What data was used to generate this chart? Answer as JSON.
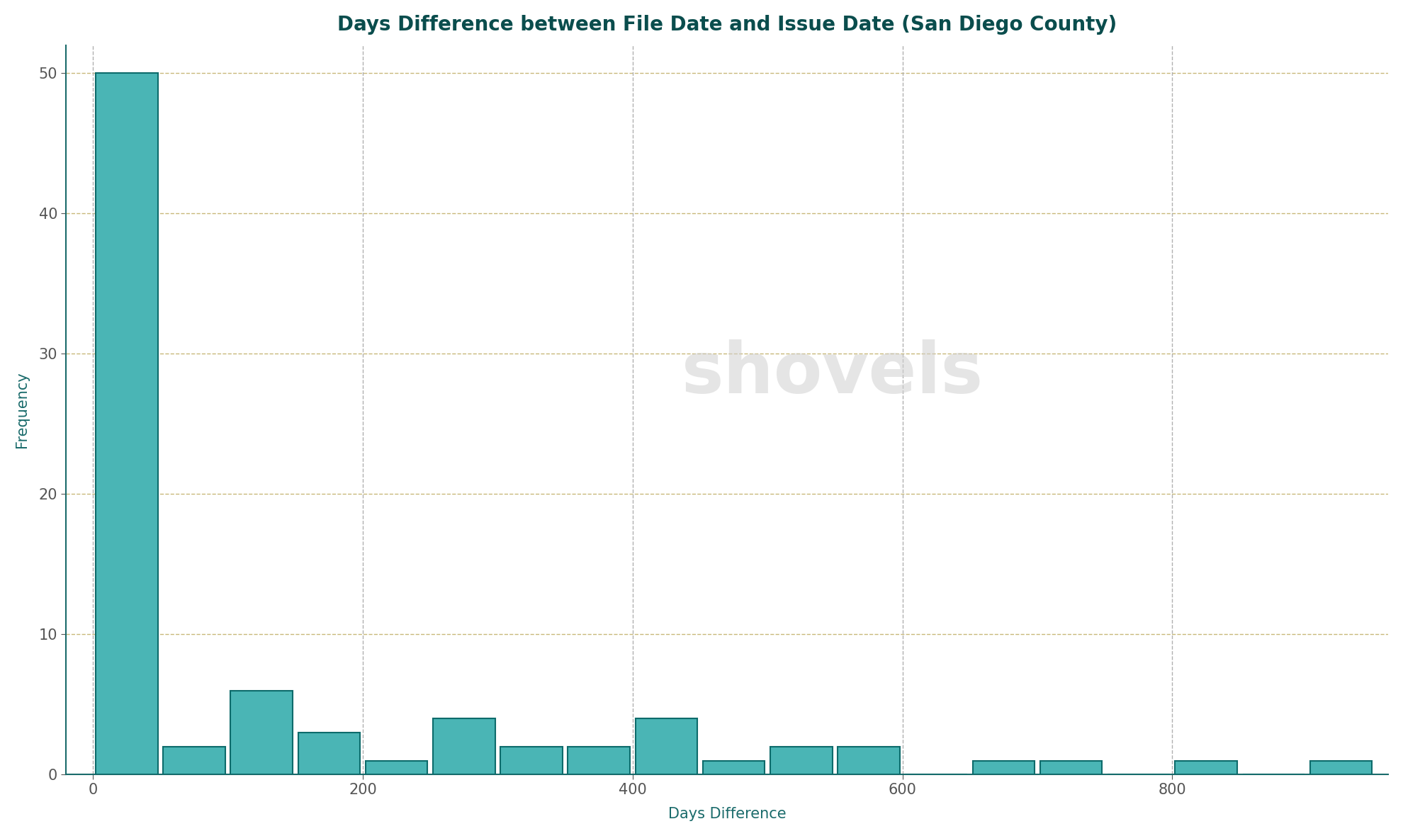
{
  "title": "Days Difference between File Date and Issue Date (San Diego County)",
  "xlabel": "Days Difference",
  "ylabel": "Frequency",
  "title_color": "#0a4d4d",
  "axis_label_color": "#1a6b6b",
  "tick_color": "#555555",
  "bar_face_color": "#4ab5b5",
  "bar_edge_color": "#0d6b6b",
  "background_color": "#ffffff",
  "grid_color_h": "#c8b87a",
  "grid_color_v": "#b0b0b0",
  "watermark_text": "shovels",
  "watermark_color": "#d0d0d0",
  "bin_edges": [
    0,
    50,
    100,
    150,
    200,
    250,
    300,
    350,
    400,
    450,
    500,
    550,
    600,
    650,
    700,
    750,
    800,
    850,
    900,
    950
  ],
  "counts": [
    50,
    2,
    6,
    3,
    1,
    4,
    2,
    2,
    4,
    1,
    2,
    2,
    0,
    1,
    1,
    0,
    1,
    0,
    1
  ],
  "ylim": [
    0,
    52
  ],
  "xlim": [
    -20,
    960
  ],
  "yticks": [
    0,
    10,
    20,
    30,
    40,
    50
  ],
  "xticks": [
    0,
    200,
    400,
    600,
    800
  ],
  "title_fontsize": 20,
  "label_fontsize": 15,
  "tick_fontsize": 15
}
